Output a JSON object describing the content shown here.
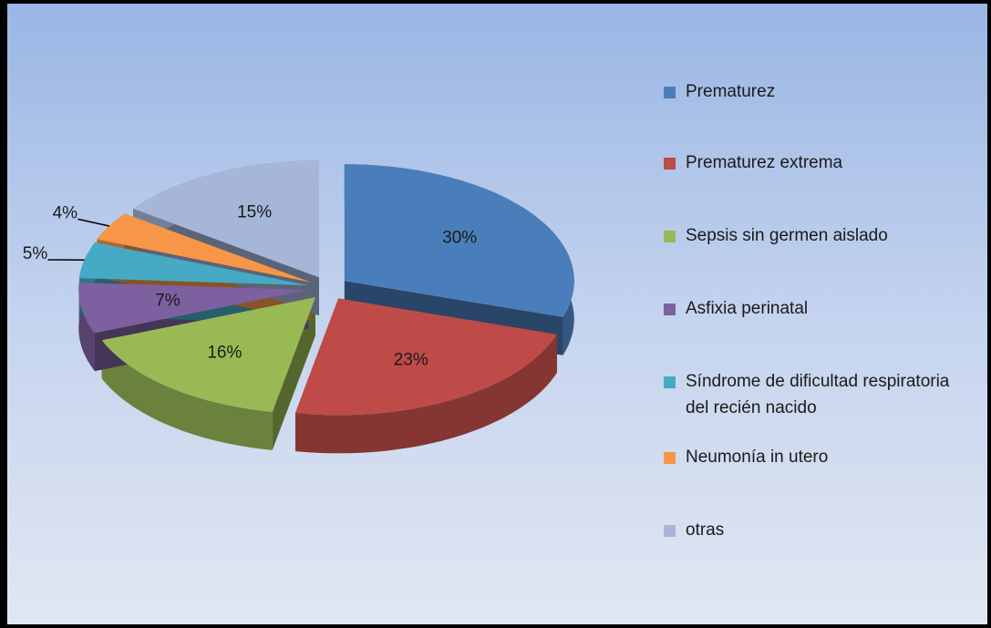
{
  "chart_data": {
    "type": "pie",
    "categories": [
      "Prematurez",
      "Prematurez extrema",
      "Sepsis sin germen aislado",
      "Asfixia perinatal",
      "Síndrome de dificultad respiratoria del recién nacido",
      "Neumonía in utero",
      "otras"
    ],
    "values": [
      30,
      23,
      16,
      7,
      5,
      4,
      15
    ],
    "value_labels": [
      "30%",
      "23%",
      "16%",
      "7%",
      "5%",
      "4%",
      "15%"
    ],
    "colors": [
      "#4a7ebb",
      "#be4b48",
      "#98b954",
      "#7d60a0",
      "#46aac5",
      "#f79646",
      "#a5b6d8"
    ],
    "legend": "right"
  }
}
